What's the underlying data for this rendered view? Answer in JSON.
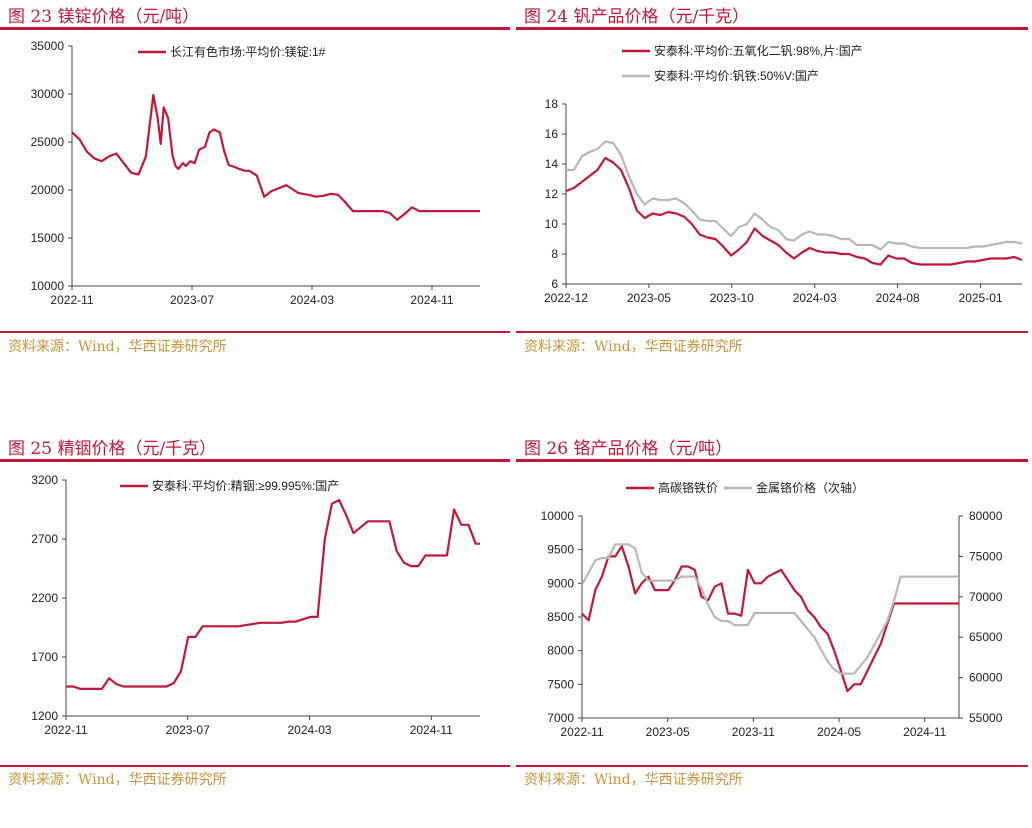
{
  "panels": [
    {
      "title": "图 23 镁锭价格（元/吨）",
      "source": "资料来源：Wind，华西证券研究所"
    },
    {
      "title": "图 24 钒产品价格（元/千克）",
      "source": "资料来源：Wind，华西证券研究所"
    },
    {
      "title": "图 25 精铟价格（元/千克）",
      "source": "资料来源：Wind，华西证券研究所"
    },
    {
      "title": "图 26 铬产品价格（元/吨）",
      "source": "资料来源：Wind，华西证券研究所"
    }
  ],
  "colors": {
    "title": "#c0183b",
    "source": "#c9943d",
    "series_red": "#c0183b",
    "series_grey": "#b8b8b8"
  },
  "chart_data": [
    {
      "type": "line",
      "title": "图 23 镁锭价格（元/吨）",
      "ylim": [
        10000,
        35000
      ],
      "yticks": [
        10000,
        15000,
        20000,
        25000,
        30000,
        35000
      ],
      "xticks": [
        "2022-11",
        "2023-07",
        "2024-03",
        "2024-11"
      ],
      "xrange": [
        0,
        27.6
      ],
      "legend_position": "top",
      "series": [
        {
          "name": "长江有色市场:平均价:镁锭:1#",
          "color": "#c0183b",
          "axis": "left",
          "x": [
            0,
            0.5,
            1,
            1.5,
            2,
            2.5,
            3,
            3.5,
            4,
            4.5,
            5,
            5.5,
            5.8,
            6,
            6.2,
            6.5,
            6.8,
            7,
            7.2,
            7.5,
            7.7,
            8,
            8.3,
            8.6,
            9,
            9.3,
            9.6,
            10,
            10.3,
            10.6,
            11,
            11.3,
            11.7,
            12,
            12.5,
            13,
            13.5,
            14,
            14.5,
            15,
            15.3,
            15.6,
            16,
            16.5,
            17,
            17.5,
            18,
            18.5,
            19,
            19.5,
            20,
            20.5,
            21,
            21.5,
            22,
            22.5,
            23,
            23.5,
            24,
            24.5,
            25,
            25.5,
            26,
            26.3,
            26.6,
            27,
            27.3,
            27.6
          ],
          "y": [
            26000,
            25300,
            24000,
            23300,
            23000,
            23500,
            23800,
            22800,
            21800,
            21600,
            23500,
            29900,
            27500,
            24800,
            28600,
            27500,
            23600,
            22500,
            22200,
            22800,
            22500,
            23000,
            22800,
            24200,
            24500,
            26000,
            26300,
            26000,
            24000,
            22600,
            22400,
            22200,
            22000,
            22000,
            21500,
            19300,
            19900,
            20200,
            20500,
            20000,
            19700,
            19600,
            19500,
            19300,
            19400,
            19600,
            19500,
            18700,
            17800,
            17800,
            17800,
            17800,
            17800,
            17600,
            16900,
            17500,
            18200,
            17800,
            17800,
            17800,
            17800,
            17800,
            17800,
            17800,
            17800,
            17800,
            17800,
            17800
          ]
        }
      ]
    },
    {
      "type": "line",
      "title": "图 24 钒产品价格（元/千克）",
      "ylim": [
        6,
        18
      ],
      "yticks": [
        6,
        8,
        10,
        12,
        14,
        16,
        18
      ],
      "xticks": [
        "2022-12",
        "2023-05",
        "2023-10",
        "2024-03",
        "2024-08",
        "2025-01"
      ],
      "xrange": [
        0,
        29
      ],
      "legend_position": "top",
      "series": [
        {
          "name": "安泰科:平均价:五氧化二钒:98%,片:国产",
          "color": "#c0183b",
          "axis": "left",
          "x": [
            0,
            0.5,
            1,
            1.5,
            2,
            2.5,
            3,
            3.5,
            4,
            4.5,
            5,
            5.5,
            6,
            6.5,
            7,
            7.5,
            8,
            8.5,
            9,
            9.5,
            10,
            10.5,
            11,
            11.5,
            12,
            12.5,
            13,
            13.5,
            14,
            14.5,
            15,
            15.5,
            16,
            16.5,
            17,
            17.5,
            18,
            18.5,
            19,
            19.5,
            20,
            20.5,
            21,
            21.5,
            22,
            22.5,
            23,
            23.5,
            24,
            24.5,
            25,
            25.5,
            26,
            26.5,
            27,
            27.5,
            28,
            28.5,
            29
          ],
          "y": [
            12.2,
            12.4,
            12.8,
            13.2,
            13.6,
            14.4,
            14.1,
            13.6,
            12.4,
            10.9,
            10.4,
            10.7,
            10.6,
            10.8,
            10.7,
            10.5,
            10.0,
            9.3,
            9.1,
            9.0,
            8.5,
            7.9,
            8.3,
            8.8,
            9.7,
            9.2,
            8.9,
            8.6,
            8.1,
            7.7,
            8.1,
            8.4,
            8.2,
            8.1,
            8.1,
            8.0,
            8.0,
            7.8,
            7.7,
            7.4,
            7.3,
            7.9,
            7.7,
            7.7,
            7.4,
            7.3,
            7.3,
            7.3,
            7.3,
            7.3,
            7.4,
            7.5,
            7.5,
            7.6,
            7.7,
            7.7,
            7.7,
            7.8,
            7.6
          ]
        },
        {
          "name": "安泰科:平均价:钒铁:50%V:国产",
          "color": "#b8b8b8",
          "axis": "left",
          "x": [
            0,
            0.5,
            1,
            1.5,
            2,
            2.5,
            3,
            3.5,
            4,
            4.5,
            5,
            5.5,
            6,
            6.5,
            7,
            7.5,
            8,
            8.5,
            9,
            9.5,
            10,
            10.5,
            11,
            11.5,
            12,
            12.5,
            13,
            13.5,
            14,
            14.5,
            15,
            15.5,
            16,
            16.5,
            17,
            17.5,
            18,
            18.5,
            19,
            19.5,
            20,
            20.5,
            21,
            21.5,
            22,
            22.5,
            23,
            23.5,
            24,
            24.5,
            25,
            25.5,
            26,
            26.5,
            27,
            27.5,
            28,
            28.5,
            29
          ],
          "y": [
            13.6,
            13.6,
            14.5,
            14.8,
            15.0,
            15.5,
            15.4,
            14.6,
            13.2,
            12.0,
            11.3,
            11.7,
            11.6,
            11.6,
            11.7,
            11.4,
            10.9,
            10.3,
            10.2,
            10.2,
            9.7,
            9.2,
            9.8,
            10.0,
            10.7,
            10.3,
            9.8,
            9.6,
            9.0,
            8.9,
            9.3,
            9.5,
            9.3,
            9.3,
            9.2,
            9.0,
            9.0,
            8.6,
            8.6,
            8.6,
            8.3,
            8.8,
            8.7,
            8.7,
            8.5,
            8.4,
            8.4,
            8.4,
            8.4,
            8.4,
            8.4,
            8.4,
            8.5,
            8.5,
            8.6,
            8.7,
            8.8,
            8.8,
            8.7
          ]
        }
      ]
    },
    {
      "type": "line",
      "title": "图 25 精铟价格（元/千克）",
      "ylim": [
        1200,
        3200
      ],
      "yticks": [
        1200,
        1700,
        2200,
        2700,
        3200
      ],
      "xticks": [
        "2022-11",
        "2023-07",
        "2024-03",
        "2024-11"
      ],
      "xrange": [
        0,
        28.8
      ],
      "legend_position": "top",
      "series": [
        {
          "name": "安泰科:平均价:精铟:≥99.995%:国产",
          "color": "#c0183b",
          "axis": "left",
          "x": [
            0,
            0.5,
            1,
            1.5,
            2,
            2.5,
            3,
            3.5,
            4,
            4.5,
            5,
            5.5,
            6,
            6.5,
            7,
            7.5,
            8,
            8.5,
            9,
            9.5,
            10,
            10.5,
            11,
            11.5,
            12,
            12.5,
            13,
            13.5,
            14,
            14.5,
            15,
            15.5,
            16,
            16.5,
            17,
            17.5,
            18,
            18.5,
            19,
            19.5,
            20,
            20.5,
            21,
            21.5,
            22,
            22.5,
            23,
            23.5,
            24,
            24.5,
            25,
            25.5,
            26,
            26.5,
            27,
            27.5,
            28,
            28.5,
            28.8
          ],
          "y": [
            1450,
            1450,
            1430,
            1430,
            1430,
            1430,
            1520,
            1470,
            1450,
            1450,
            1450,
            1450,
            1450,
            1450,
            1450,
            1480,
            1580,
            1870,
            1870,
            1960,
            1960,
            1960,
            1960,
            1960,
            1960,
            1970,
            1980,
            1990,
            1990,
            1990,
            1990,
            2000,
            2000,
            2020,
            2040,
            2040,
            2700,
            3000,
            3030,
            2900,
            2750,
            2800,
            2850,
            2850,
            2850,
            2850,
            2600,
            2500,
            2470,
            2470,
            2560,
            2560,
            2560,
            2560,
            2950,
            2820,
            2820,
            2660,
            2660
          ]
        }
      ]
    },
    {
      "type": "line",
      "title": "图 26 铬产品价格（元/吨）",
      "ylim": [
        7000,
        10000
      ],
      "yticks": [
        7000,
        7500,
        8000,
        8500,
        9000,
        9500,
        10000
      ],
      "y2lim": [
        55000,
        80000
      ],
      "y2ticks": [
        55000,
        60000,
        65000,
        70000,
        75000,
        80000
      ],
      "xticks": [
        "2022-11",
        "2023-05",
        "2023-11",
        "2024-05",
        "2024-11"
      ],
      "xrange": [
        0,
        28.4
      ],
      "legend_position": "top",
      "series": [
        {
          "name": "高碳铬铁价",
          "color": "#c0183b",
          "axis": "left",
          "x": [
            0,
            0.5,
            1,
            1.5,
            2,
            2.5,
            3,
            3.5,
            4,
            4.5,
            5,
            5.5,
            6,
            6.5,
            7,
            7.5,
            8,
            8.5,
            9,
            9.5,
            10,
            10.5,
            11,
            11.5,
            12,
            12.5,
            13,
            13.5,
            14,
            14.5,
            15,
            15.5,
            16,
            16.5,
            17,
            17.5,
            18,
            18.5,
            19,
            19.5,
            20,
            20.5,
            21,
            21.5,
            22,
            22.5,
            23,
            23.5,
            24,
            24.5,
            25,
            25.5,
            26,
            26.5,
            27,
            27.5,
            28,
            28.4
          ],
          "y": [
            8550,
            8450,
            8900,
            9100,
            9400,
            9400,
            9550,
            9250,
            8850,
            9000,
            9100,
            8900,
            8900,
            8900,
            9050,
            9250,
            9250,
            9200,
            8800,
            8750,
            8950,
            9000,
            8550,
            8550,
            8520,
            9200,
            9000,
            9000,
            9100,
            9150,
            9200,
            9050,
            8900,
            8800,
            8600,
            8500,
            8350,
            8250,
            8000,
            7700,
            7400,
            7500,
            7500,
            7700,
            7900,
            8100,
            8400,
            8700,
            8700,
            8700,
            8700,
            8700,
            8700,
            8700,
            8700,
            8700,
            8700,
            8700
          ]
        },
        {
          "name": "金属铬价格（次轴）",
          "color": "#b8b8b8",
          "axis": "right",
          "x": [
            0,
            0.5,
            1,
            1.5,
            2,
            2.5,
            3,
            3.5,
            4,
            4.5,
            5,
            5.5,
            6,
            6.5,
            7,
            7.5,
            8,
            8.5,
            9,
            9.5,
            10,
            10.5,
            11,
            11.5,
            12,
            12.5,
            13,
            13.5,
            14,
            14.5,
            15,
            15.5,
            16,
            16.5,
            17,
            17.5,
            18,
            18.5,
            19,
            19.5,
            20,
            20.5,
            21,
            21.5,
            22,
            22.5,
            23,
            23.5,
            24,
            24.5,
            25,
            25.5,
            26,
            26.5,
            27,
            27.5,
            28,
            28.4
          ],
          "y": [
            71500,
            73000,
            74500,
            74800,
            74800,
            76500,
            76500,
            76500,
            76000,
            73000,
            72000,
            72000,
            72000,
            72000,
            72000,
            72500,
            72500,
            72500,
            71000,
            69000,
            67500,
            67000,
            67000,
            66500,
            66500,
            66500,
            68000,
            68000,
            68000,
            68000,
            68000,
            68000,
            68000,
            67000,
            66000,
            65000,
            63500,
            62000,
            61000,
            60500,
            60500,
            60500,
            61500,
            62500,
            64000,
            65500,
            67000,
            69500,
            72500,
            72500,
            72500,
            72500,
            72500,
            72500,
            72500,
            72500,
            72500,
            72500
          ]
        }
      ]
    }
  ]
}
